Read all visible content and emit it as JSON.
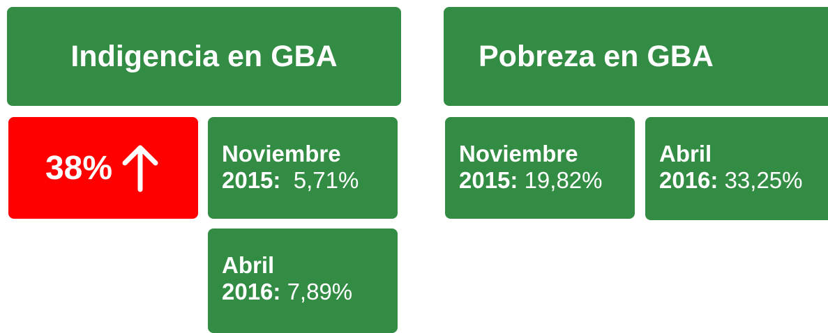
{
  "indigencia": {
    "title": "Indigencia en GBA",
    "change": "38%",
    "periods": [
      {
        "month": "Noviembre",
        "year": "2015:",
        "value": "5,71%"
      },
      {
        "month": "Abril",
        "year": "2016:",
        "value": "7,89%"
      }
    ]
  },
  "pobreza": {
    "title": "Pobreza en GBA",
    "periods": [
      {
        "month": "Noviembre",
        "year": "2015:",
        "value": "19,82%"
      },
      {
        "month": "Abril",
        "year": "2016:",
        "value": "33,25%"
      }
    ]
  }
}
